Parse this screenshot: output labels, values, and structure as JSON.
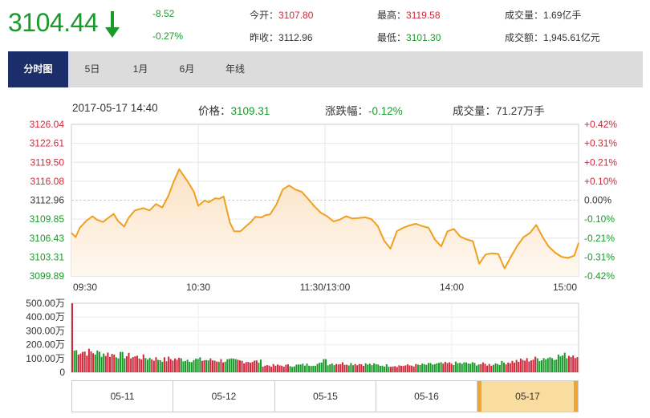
{
  "quote": {
    "price": "3104.44",
    "change": "-8.52",
    "change_pct": "-0.27%",
    "open_label": "今开：",
    "open": "3107.80",
    "prev_close_label": "昨收：",
    "prev_close": "3112.96",
    "high_label": "最高：",
    "high": "3119.58",
    "low_label": "最低：",
    "low": "3101.30",
    "volume_label": "成交量：",
    "volume": "1.69亿手",
    "turnover_label": "成交额：",
    "turnover": "1,945.61亿元"
  },
  "tabs": [
    "分时图",
    "5日",
    "1月",
    "6月",
    "年线"
  ],
  "info": {
    "datetime": "2017-05-17 14:40",
    "price_label": "价格：",
    "price": "3109.31",
    "change_label": "涨跌幅：",
    "change": "-0.12%",
    "volume_label": "成交量：",
    "volume": "71.27万手"
  },
  "dates": [
    "05-11",
    "05-12",
    "05-15",
    "05-16",
    "05-17"
  ],
  "colors": {
    "line": "#f0a020",
    "area": "#fbe2c4",
    "up": "#d0283a",
    "down": "#1a9a2a",
    "nav_active": "#1c2e6a"
  },
  "chart_data": [
    {
      "type": "area",
      "title": "",
      "y_ticks_left": [
        "3126.04",
        "3122.61",
        "3119.50",
        "3116.08",
        "3112.96",
        "3109.85",
        "3106.43",
        "3103.31",
        "3099.89"
      ],
      "y_ticks_right": [
        "+0.42%",
        "+0.31%",
        "+0.21%",
        "+0.10%",
        "0.00%",
        "-0.10%",
        "-0.21%",
        "-0.31%",
        "-0.42%"
      ],
      "x_ticks": [
        "09:30",
        "10:30",
        "11:30/13:00",
        "14:00",
        "15:00"
      ],
      "ylim": [
        3099.89,
        3126.04
      ],
      "x": [
        0,
        2,
        4,
        7,
        10,
        12,
        15,
        17,
        20,
        22,
        25,
        27,
        30,
        34,
        37,
        40,
        43,
        46,
        48,
        51,
        55,
        58,
        60,
        63,
        65,
        68,
        70,
        72,
        75,
        77,
        80,
        83,
        85,
        87,
        90,
        92,
        94,
        97,
        100,
        103,
        106,
        109,
        112,
        115,
        118,
        121,
        124,
        127,
        130,
        133,
        136,
        139,
        142,
        145,
        148,
        151,
        154,
        157,
        160,
        163,
        166,
        169,
        172,
        175,
        178,
        181,
        184,
        187,
        190,
        193,
        196,
        199,
        202,
        205,
        208,
        211,
        214,
        217,
        220,
        223,
        226,
        229,
        232,
        235,
        238,
        240
      ],
      "values": [
        3107.3,
        3106.6,
        3108.2,
        3109.4,
        3110.2,
        3109.6,
        3109.2,
        3109.8,
        3110.6,
        3109.4,
        3108.4,
        3109.9,
        3111.2,
        3111.6,
        3111.2,
        3112.3,
        3111.7,
        3113.8,
        3115.8,
        3118.3,
        3116.2,
        3114.4,
        3112.0,
        3112.9,
        3112.6,
        3113.3,
        3113.2,
        3113.6,
        3109.1,
        3107.6,
        3107.6,
        3108.6,
        3109.2,
        3110.1,
        3110.0,
        3110.4,
        3110.5,
        3112.2,
        3114.8,
        3115.5,
        3114.8,
        3114.4,
        3113.2,
        3111.9,
        3110.8,
        3110.2,
        3109.3,
        3109.6,
        3110.2,
        3109.8,
        3109.9,
        3110.0,
        3109.7,
        3108.5,
        3106.0,
        3104.6,
        3107.6,
        3108.2,
        3108.6,
        3108.9,
        3108.5,
        3108.2,
        3106.2,
        3105.0,
        3107.6,
        3108.0,
        3106.7,
        3106.2,
        3105.9,
        3102.0,
        3103.6,
        3103.8,
        3103.7,
        3101.2,
        3103.2,
        3105.1,
        3106.6,
        3107.3,
        3108.7,
        3106.6,
        3104.9,
        3103.9,
        3103.2,
        3103.0,
        3103.4,
        3105.6
      ]
    },
    {
      "type": "bar",
      "title": "",
      "y_ticks": [
        "500.00万",
        "400.00万",
        "300.00万",
        "200.00万",
        "100.00万",
        "0"
      ],
      "ylim": [
        0,
        500
      ],
      "bar_count": 242,
      "first_bar": 500,
      "markers": [
        [
          0.5,
          95
        ]
      ]
    }
  ]
}
